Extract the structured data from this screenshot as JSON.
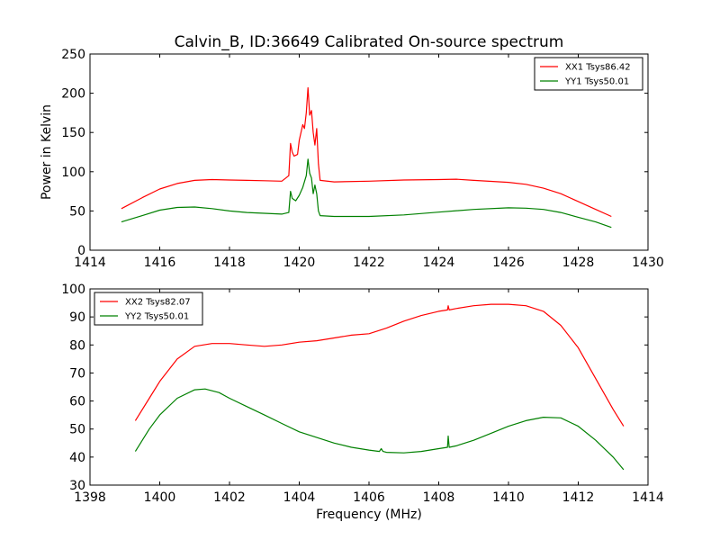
{
  "chart_data": [
    {
      "type": "line",
      "title": "Calvin_B, ID:36649 Calibrated On-source spectrum",
      "xlabel": "",
      "ylabel": "Power in Kelvin",
      "xlim": [
        1414,
        1430
      ],
      "ylim": [
        0,
        250
      ],
      "xticks": [
        "1414",
        "1416",
        "1418",
        "1420",
        "1422",
        "1424",
        "1426",
        "1428",
        "1430"
      ],
      "yticks": [
        "0",
        "50",
        "100",
        "150",
        "200",
        "250"
      ],
      "legend": "top-right",
      "series": [
        {
          "name": "XX1 Tsys86.42",
          "color": "#ff0000",
          "x": [
            1414.9,
            1415.5,
            1416.0,
            1416.5,
            1417.0,
            1417.5,
            1418.0,
            1418.5,
            1419.0,
            1419.5,
            1419.7,
            1419.75,
            1419.8,
            1419.85,
            1419.95,
            1420.0,
            1420.1,
            1420.15,
            1420.2,
            1420.25,
            1420.3,
            1420.35,
            1420.4,
            1420.45,
            1420.5,
            1420.55,
            1420.6,
            1421.0,
            1422.0,
            1423.0,
            1424.0,
            1424.5,
            1425.0,
            1426.0,
            1426.5,
            1427.0,
            1427.5,
            1428.0,
            1428.5,
            1428.95
          ],
          "values": [
            53,
            67,
            78,
            85,
            89,
            90,
            89.5,
            89,
            88.5,
            88,
            95,
            136,
            125,
            120,
            122,
            140,
            160,
            155,
            175,
            207,
            172,
            178,
            150,
            134,
            155,
            110,
            89,
            87,
            88,
            89.5,
            90,
            90.5,
            89,
            86.5,
            84,
            79,
            72,
            62,
            52,
            43
          ]
        },
        {
          "name": "YY1 Tsys50.01",
          "color": "#008000",
          "x": [
            1414.9,
            1415.5,
            1416.0,
            1416.5,
            1417.0,
            1417.5,
            1418.0,
            1418.5,
            1419.0,
            1419.5,
            1419.7,
            1419.75,
            1419.8,
            1419.9,
            1420.0,
            1420.1,
            1420.2,
            1420.25,
            1420.3,
            1420.35,
            1420.4,
            1420.45,
            1420.5,
            1420.55,
            1420.6,
            1421.0,
            1422.0,
            1423.0,
            1424.0,
            1425.0,
            1426.0,
            1426.5,
            1427.0,
            1427.5,
            1428.0,
            1428.5,
            1428.95
          ],
          "values": [
            36,
            44,
            51,
            54.5,
            55,
            53,
            50,
            48,
            47,
            46,
            48,
            75,
            66,
            63,
            70,
            80,
            95,
            116,
            98,
            92,
            72,
            83,
            72,
            50,
            44,
            43,
            43,
            45,
            48.5,
            52,
            54,
            53.5,
            52,
            48,
            42,
            36,
            29
          ]
        }
      ]
    },
    {
      "type": "line",
      "title": "",
      "xlabel": "Frequency (MHz)",
      "ylabel": "",
      "xlim": [
        1398,
        1414
      ],
      "ylim": [
        30,
        100
      ],
      "xticks": [
        "1398",
        "1400",
        "1402",
        "1404",
        "1406",
        "1408",
        "1410",
        "1412",
        "1414"
      ],
      "yticks": [
        "30",
        "40",
        "50",
        "60",
        "70",
        "80",
        "90",
        "100"
      ],
      "legend": "top-left",
      "series": [
        {
          "name": "XX2 Tsys82.07",
          "color": "#ff0000",
          "x": [
            1399.3,
            1399.7,
            1400.0,
            1400.5,
            1401.0,
            1401.5,
            1402.0,
            1402.5,
            1403.0,
            1403.5,
            1404.0,
            1404.5,
            1405.0,
            1405.5,
            1406.0,
            1406.5,
            1407.0,
            1407.5,
            1408.0,
            1408.25,
            1408.27,
            1408.3,
            1408.5,
            1409.0,
            1409.5,
            1410.0,
            1410.5,
            1411.0,
            1411.5,
            1412.0,
            1412.5,
            1413.0,
            1413.3
          ],
          "values": [
            53,
            61,
            67,
            75,
            79.5,
            80.5,
            80.5,
            80,
            79.5,
            80,
            81,
            81.5,
            82.5,
            83.5,
            84,
            86,
            88.5,
            90.5,
            92,
            92.5,
            94,
            92.5,
            93,
            94,
            94.5,
            94.5,
            94,
            92,
            87,
            79,
            68,
            57,
            51
          ]
        },
        {
          "name": "YY2 Tsys50.01",
          "color": "#008000",
          "x": [
            1399.3,
            1399.7,
            1400.0,
            1400.5,
            1401.0,
            1401.3,
            1401.7,
            1402.0,
            1402.5,
            1403.0,
            1403.5,
            1404.0,
            1404.5,
            1405.0,
            1405.5,
            1406.0,
            1406.3,
            1406.35,
            1406.4,
            1406.5,
            1407.0,
            1407.5,
            1408.0,
            1408.25,
            1408.27,
            1408.3,
            1408.5,
            1409.0,
            1409.5,
            1410.0,
            1410.5,
            1411.0,
            1411.5,
            1412.0,
            1412.5,
            1413.0,
            1413.3
          ],
          "values": [
            42,
            50,
            55,
            61,
            64,
            64.3,
            63,
            61,
            58,
            55,
            52,
            49,
            47,
            45,
            43.5,
            42.5,
            42,
            43,
            42,
            41.7,
            41.5,
            42,
            43,
            43.5,
            47.5,
            43.5,
            44,
            46,
            48.5,
            51,
            53,
            54.2,
            54,
            51,
            46,
            40,
            35.5
          ]
        }
      ]
    }
  ]
}
